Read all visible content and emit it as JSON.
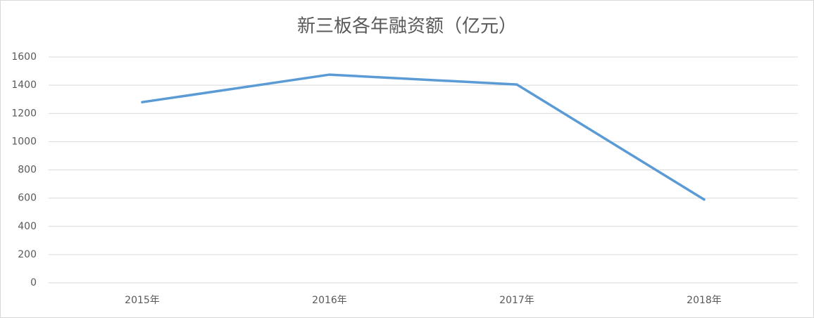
{
  "chart_data": {
    "type": "line",
    "title": "新三板各年融资额（亿元）",
    "categories": [
      "2015年",
      "2016年",
      "2017年",
      "2018年"
    ],
    "series": [
      {
        "name": "融资额",
        "color": "#5b9bd5",
        "values": [
          1280,
          1475,
          1405,
          590
        ]
      }
    ],
    "ylim": [
      0,
      1600
    ],
    "yticks": [
      0,
      200,
      400,
      600,
      800,
      1000,
      1200,
      1400,
      1600
    ],
    "grid": true
  }
}
